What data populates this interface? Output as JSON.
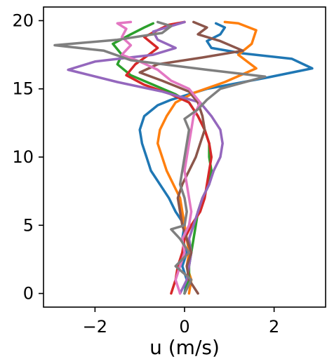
{
  "chart_data": {
    "type": "line",
    "title": "",
    "xlabel": "u (m/s)",
    "ylabel": "",
    "xlim": [
      -3.15,
      3.15
    ],
    "ylim": [
      -1.0,
      21.0
    ],
    "xticks": [
      -2,
      0,
      2
    ],
    "xtick_labels": [
      "−2",
      "0",
      "2"
    ],
    "yticks": [
      0,
      5,
      10,
      15,
      20
    ],
    "ytick_labels": [
      "0",
      "5",
      "10",
      "15",
      "20"
    ],
    "grid": false,
    "legend": "none",
    "series": [
      {
        "color": "#1f77b4",
        "points": [
          [
            0.0,
            0.0
          ],
          [
            0.05,
            1.0
          ],
          [
            -0.05,
            2.0
          ],
          [
            0.05,
            3.0
          ],
          [
            -0.05,
            4.0
          ],
          [
            0.0,
            5.0
          ],
          [
            -0.2,
            6.0
          ],
          [
            -0.35,
            7.0
          ],
          [
            -0.55,
            8.0
          ],
          [
            -0.75,
            9.0
          ],
          [
            -0.85,
            10.0
          ],
          [
            -0.95,
            11.0
          ],
          [
            -1.0,
            12.0
          ],
          [
            -0.9,
            13.0
          ],
          [
            -0.6,
            13.8
          ],
          [
            -0.3,
            14.2
          ],
          [
            0.5,
            15.0
          ],
          [
            1.8,
            15.8
          ],
          [
            2.85,
            16.5
          ],
          [
            2.4,
            17.2
          ],
          [
            1.3,
            17.6
          ],
          [
            0.6,
            18.0
          ],
          [
            0.5,
            18.5
          ],
          [
            0.8,
            19.0
          ],
          [
            0.9,
            19.5
          ],
          [
            0.7,
            19.8
          ]
        ]
      },
      {
        "color": "#ff7f0e",
        "points": [
          [
            0.1,
            0.0
          ],
          [
            0.15,
            1.0
          ],
          [
            0.05,
            2.0
          ],
          [
            0.1,
            3.0
          ],
          [
            0.05,
            4.0
          ],
          [
            0.0,
            5.0
          ],
          [
            -0.05,
            6.0
          ],
          [
            -0.1,
            7.0
          ],
          [
            -0.25,
            8.0
          ],
          [
            -0.4,
            9.0
          ],
          [
            -0.5,
            10.0
          ],
          [
            -0.6,
            11.0
          ],
          [
            -0.55,
            12.0
          ],
          [
            -0.4,
            13.0
          ],
          [
            -0.2,
            14.0
          ],
          [
            0.2,
            14.7
          ],
          [
            0.9,
            15.5
          ],
          [
            1.6,
            16.5
          ],
          [
            1.2,
            17.5
          ],
          [
            1.5,
            18.3
          ],
          [
            1.6,
            19.3
          ],
          [
            1.2,
            19.8
          ],
          [
            0.9,
            19.9
          ]
        ]
      },
      {
        "color": "#2ca02c",
        "points": [
          [
            0.0,
            0.0
          ],
          [
            0.1,
            1.0
          ],
          [
            0.1,
            2.0
          ],
          [
            0.15,
            3.0
          ],
          [
            0.2,
            4.0
          ],
          [
            0.25,
            5.0
          ],
          [
            0.3,
            6.0
          ],
          [
            0.4,
            7.0
          ],
          [
            0.55,
            8.0
          ],
          [
            0.6,
            9.0
          ],
          [
            0.55,
            10.0
          ],
          [
            0.55,
            11.0
          ],
          [
            0.45,
            12.0
          ],
          [
            0.3,
            13.0
          ],
          [
            0.1,
            14.0
          ],
          [
            -0.2,
            14.6
          ],
          [
            -0.7,
            15.3
          ],
          [
            -1.2,
            16.0
          ],
          [
            -1.5,
            16.8
          ],
          [
            -1.4,
            17.5
          ],
          [
            -1.6,
            18.3
          ],
          [
            -1.2,
            19.0
          ],
          [
            -0.9,
            19.5
          ],
          [
            -0.7,
            19.8
          ]
        ]
      },
      {
        "color": "#d62728",
        "points": [
          [
            -0.3,
            0.0
          ],
          [
            -0.2,
            1.0
          ],
          [
            -0.15,
            2.0
          ],
          [
            -0.05,
            3.0
          ],
          [
            0.0,
            4.0
          ],
          [
            0.15,
            5.0
          ],
          [
            0.35,
            6.0
          ],
          [
            0.45,
            7.0
          ],
          [
            0.5,
            8.0
          ],
          [
            0.55,
            9.0
          ],
          [
            0.6,
            10.0
          ],
          [
            0.55,
            11.0
          ],
          [
            0.45,
            12.0
          ],
          [
            0.3,
            13.0
          ],
          [
            0.1,
            14.0
          ],
          [
            -0.3,
            14.6
          ],
          [
            -0.9,
            15.3
          ],
          [
            -1.3,
            16.0
          ],
          [
            -1.1,
            16.8
          ],
          [
            -0.8,
            17.5
          ],
          [
            -0.6,
            18.0
          ],
          [
            -0.9,
            18.8
          ],
          [
            -0.6,
            19.3
          ],
          [
            -0.35,
            19.7
          ],
          [
            0.0,
            19.9
          ]
        ]
      },
      {
        "color": "#9467bd",
        "points": [
          [
            -0.1,
            0.0
          ],
          [
            0.05,
            1.0
          ],
          [
            0.1,
            2.0
          ],
          [
            0.15,
            3.0
          ],
          [
            0.1,
            4.0
          ],
          [
            0.2,
            5.0
          ],
          [
            0.3,
            6.0
          ],
          [
            0.4,
            7.0
          ],
          [
            0.55,
            8.0
          ],
          [
            0.65,
            9.0
          ],
          [
            0.8,
            10.0
          ],
          [
            0.85,
            11.0
          ],
          [
            0.8,
            12.0
          ],
          [
            0.6,
            13.0
          ],
          [
            0.35,
            14.0
          ],
          [
            -0.5,
            14.8
          ],
          [
            -1.5,
            15.5
          ],
          [
            -2.6,
            16.4
          ],
          [
            -2.0,
            17.0
          ],
          [
            -0.7,
            17.5
          ],
          [
            -0.2,
            18.0
          ],
          [
            -0.6,
            18.6
          ],
          [
            -0.7,
            19.2
          ],
          [
            -0.3,
            19.6
          ],
          [
            0.0,
            19.9
          ]
        ]
      },
      {
        "color": "#8c564b",
        "points": [
          [
            0.3,
            0.0
          ],
          [
            0.1,
            1.0
          ],
          [
            0.05,
            2.0
          ],
          [
            0.15,
            3.0
          ],
          [
            0.05,
            4.0
          ],
          [
            -0.05,
            5.0
          ],
          [
            -0.1,
            6.0
          ],
          [
            -0.15,
            7.0
          ],
          [
            -0.05,
            8.0
          ],
          [
            0.1,
            9.0
          ],
          [
            0.25,
            10.0
          ],
          [
            0.35,
            11.0
          ],
          [
            0.45,
            12.0
          ],
          [
            0.4,
            13.0
          ],
          [
            0.3,
            14.0
          ],
          [
            0.1,
            14.8
          ],
          [
            -0.5,
            15.6
          ],
          [
            -1.0,
            16.2
          ],
          [
            -0.6,
            16.8
          ],
          [
            0.4,
            17.3
          ],
          [
            1.3,
            17.8
          ],
          [
            0.8,
            18.5
          ],
          [
            0.3,
            19.0
          ],
          [
            0.5,
            19.5
          ],
          [
            0.2,
            19.9
          ]
        ]
      },
      {
        "color": "#e377c2",
        "points": [
          [
            -0.1,
            0.0
          ],
          [
            -0.2,
            1.0
          ],
          [
            -0.1,
            2.0
          ],
          [
            0.0,
            3.0
          ],
          [
            -0.05,
            4.0
          ],
          [
            0.1,
            5.0
          ],
          [
            0.15,
            6.0
          ],
          [
            0.1,
            7.0
          ],
          [
            0.05,
            8.0
          ],
          [
            0.0,
            9.0
          ],
          [
            0.05,
            10.0
          ],
          [
            0.1,
            11.0
          ],
          [
            0.15,
            12.0
          ],
          [
            0.2,
            13.0
          ],
          [
            0.35,
            14.0
          ],
          [
            0.1,
            15.0
          ],
          [
            -0.3,
            15.6
          ],
          [
            -0.6,
            16.4
          ],
          [
            -1.0,
            17.0
          ],
          [
            -1.4,
            17.5
          ],
          [
            -1.2,
            18.2
          ],
          [
            -1.4,
            18.8
          ],
          [
            -1.3,
            19.4
          ],
          [
            -1.5,
            19.8
          ],
          [
            -1.2,
            19.9
          ]
        ]
      },
      {
        "color": "#7f7f7f",
        "points": [
          [
            0.0,
            0.0
          ],
          [
            0.15,
            1.0
          ],
          [
            -0.2,
            2.0
          ],
          [
            0.1,
            3.0
          ],
          [
            -0.1,
            4.0
          ],
          [
            -0.3,
            4.7
          ],
          [
            0.0,
            5.0
          ],
          [
            0.05,
            6.0
          ],
          [
            0.0,
            7.0
          ],
          [
            -0.1,
            8.0
          ],
          [
            -0.05,
            9.0
          ],
          [
            0.0,
            10.0
          ],
          [
            0.05,
            11.0
          ],
          [
            0.1,
            12.0
          ],
          [
            0.0,
            12.8
          ],
          [
            0.3,
            13.5
          ],
          [
            0.5,
            14.2
          ],
          [
            0.8,
            15.0
          ],
          [
            1.8,
            15.9
          ],
          [
            0.5,
            16.4
          ],
          [
            -1.2,
            17.1
          ],
          [
            -1.8,
            17.8
          ],
          [
            -2.9,
            18.2
          ],
          [
            -1.5,
            18.6
          ],
          [
            -0.5,
            19.1
          ],
          [
            -0.3,
            19.6
          ],
          [
            -0.6,
            19.9
          ]
        ]
      }
    ]
  }
}
